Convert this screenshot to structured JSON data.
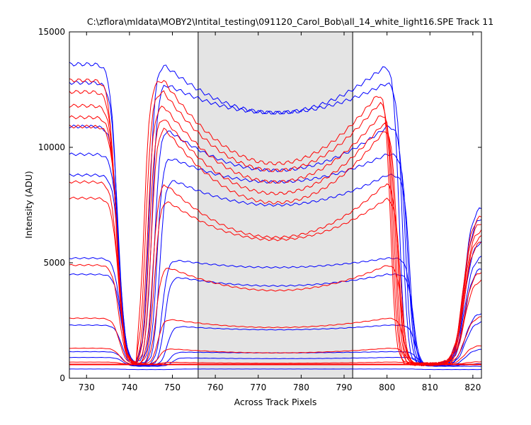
{
  "chart_data": {
    "type": "line",
    "title": "C:\\zflora\\mldata\\MOBY2\\Intital_testing\\091120_Carol_Bob\\all_14_white_light16.SPE   Track 11",
    "xlabel": "Across Track Pixels",
    "ylabel": "Intensity (ADU)",
    "xlim": [
      726,
      822
    ],
    "ylim": [
      0,
      15000
    ],
    "xticks": [
      "730",
      "740",
      "750",
      "760",
      "770",
      "780",
      "790",
      "800",
      "810",
      "820"
    ],
    "yticks": [
      "0",
      "5000",
      "10000",
      "15000"
    ],
    "grid": false,
    "legend": "none",
    "highlight_region": {
      "x_start": 756,
      "x_end": 792,
      "color": "#e4e4e4"
    },
    "colors": {
      "blue": "#0000ff",
      "red": "#ff0000",
      "axes": "#000000"
    },
    "series": [
      {
        "color": "blue",
        "plateau": 13600,
        "center": 11500,
        "floor": 600,
        "rise2": 744.6,
        "fall2": 802.8
      },
      {
        "color": "blue",
        "plateau": 12800,
        "center": 11500,
        "floor": 600,
        "rise2": 745.2,
        "fall2": 803.6
      },
      {
        "color": "blue",
        "plateau": 10900,
        "center": 9000,
        "floor": 600,
        "rise2": 745.8,
        "fall2": 804.3
      },
      {
        "color": "blue",
        "plateau": 9700,
        "center": 8500,
        "floor": 600,
        "rise2": 746.4,
        "fall2": 804.9
      },
      {
        "color": "blue",
        "plateau": 8800,
        "center": 7500,
        "floor": 580,
        "rise2": 747.0,
        "fall2": 805.3
      },
      {
        "color": "blue",
        "plateau": 5200,
        "center": 4800,
        "floor": 580,
        "rise2": 747.6,
        "fall2": 805.8
      },
      {
        "color": "blue",
        "plateau": 4500,
        "center": 4000,
        "floor": 560,
        "rise2": 748.2,
        "fall2": 806.2
      },
      {
        "color": "blue",
        "plateau": 2300,
        "center": 2100,
        "floor": 560,
        "rise2": 748.8,
        "fall2": 806.6
      },
      {
        "color": "blue",
        "plateau": 1150,
        "center": 1100,
        "floor": 540,
        "rise2": 749.4,
        "fall2": 807.0
      },
      {
        "color": "blue",
        "plateau": 900,
        "center": 850,
        "floor": 520,
        "rise2": 750.0,
        "fall2": 807.4
      },
      {
        "color": "blue",
        "plateau": 400,
        "center": 400,
        "floor": 380,
        "rise2": 750.6,
        "fall2": 807.8
      },
      {
        "color": "red",
        "plateau": 12900,
        "center": 9300,
        "floor": 620,
        "rise2": 743.4,
        "fall2": 800.8
      },
      {
        "color": "red",
        "plateau": 12400,
        "center": 9000,
        "floor": 620,
        "rise2": 743.8,
        "fall2": 801.2
      },
      {
        "color": "red",
        "plateau": 11800,
        "center": 8500,
        "floor": 620,
        "rise2": 744.2,
        "fall2": 801.6
      },
      {
        "color": "red",
        "plateau": 11300,
        "center": 8000,
        "floor": 600,
        "rise2": 744.6,
        "fall2": 802.0
      },
      {
        "color": "red",
        "plateau": 10900,
        "center": 7600,
        "floor": 600,
        "rise2": 745.0,
        "fall2": 802.4
      },
      {
        "color": "red",
        "plateau": 8500,
        "center": 6100,
        "floor": 600,
        "rise2": 745.4,
        "fall2": 802.8
      },
      {
        "color": "red",
        "plateau": 7800,
        "center": 6000,
        "floor": 600,
        "rise2": 745.8,
        "fall2": 803.2
      },
      {
        "color": "red",
        "plateau": 4900,
        "center": 3800,
        "floor": 600,
        "rise2": 746.2,
        "fall2": 803.6
      },
      {
        "color": "red",
        "plateau": 2600,
        "center": 2200,
        "floor": 600,
        "rise2": 746.6,
        "fall2": 804.0
      },
      {
        "color": "red",
        "plateau": 1300,
        "center": 1100,
        "floor": 600,
        "rise2": 747.0,
        "fall2": 804.4
      },
      {
        "color": "red",
        "plateau": 700,
        "center": 650,
        "floor": 600,
        "rise2": 747.4,
        "fall2": 804.8
      },
      {
        "color": "red",
        "plateau": 600,
        "center": 600,
        "floor": 600,
        "rise2": 747.8,
        "fall2": 805.2
      }
    ]
  }
}
